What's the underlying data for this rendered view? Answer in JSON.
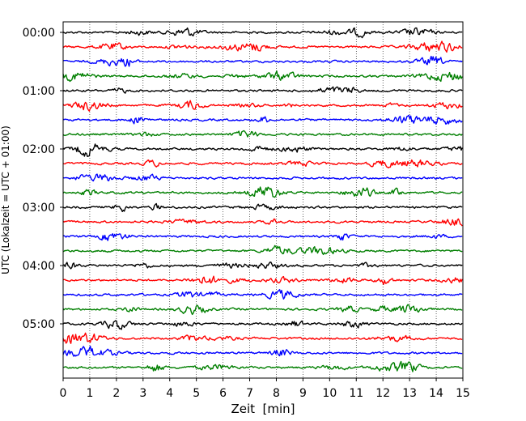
{
  "chart_data": {
    "type": "line",
    "title": "",
    "xlabel": "Zeit  [min]",
    "ylabel": "UTC (Lokalzeit = UTC + 01:00)",
    "xlim": [
      0,
      15
    ],
    "x_ticks": [
      0,
      1,
      2,
      3,
      4,
      5,
      6,
      7,
      8,
      9,
      10,
      11,
      12,
      13,
      14,
      15
    ],
    "y_ticks": [
      "00:00",
      "01:00",
      "02:00",
      "03:00",
      "04:00",
      "05:00"
    ],
    "trace_interval_min": 15,
    "trace_count": 24,
    "trace_colors": [
      "#000000",
      "#ff0000",
      "#0000ff",
      "#007f00"
    ],
    "grid_x": true,
    "grid_style": "dotted",
    "series_description": "seismogram traces, one per 15-minute interval from 00:00 to 05:45 UTC, colors cycling black, red, blue, green"
  }
}
